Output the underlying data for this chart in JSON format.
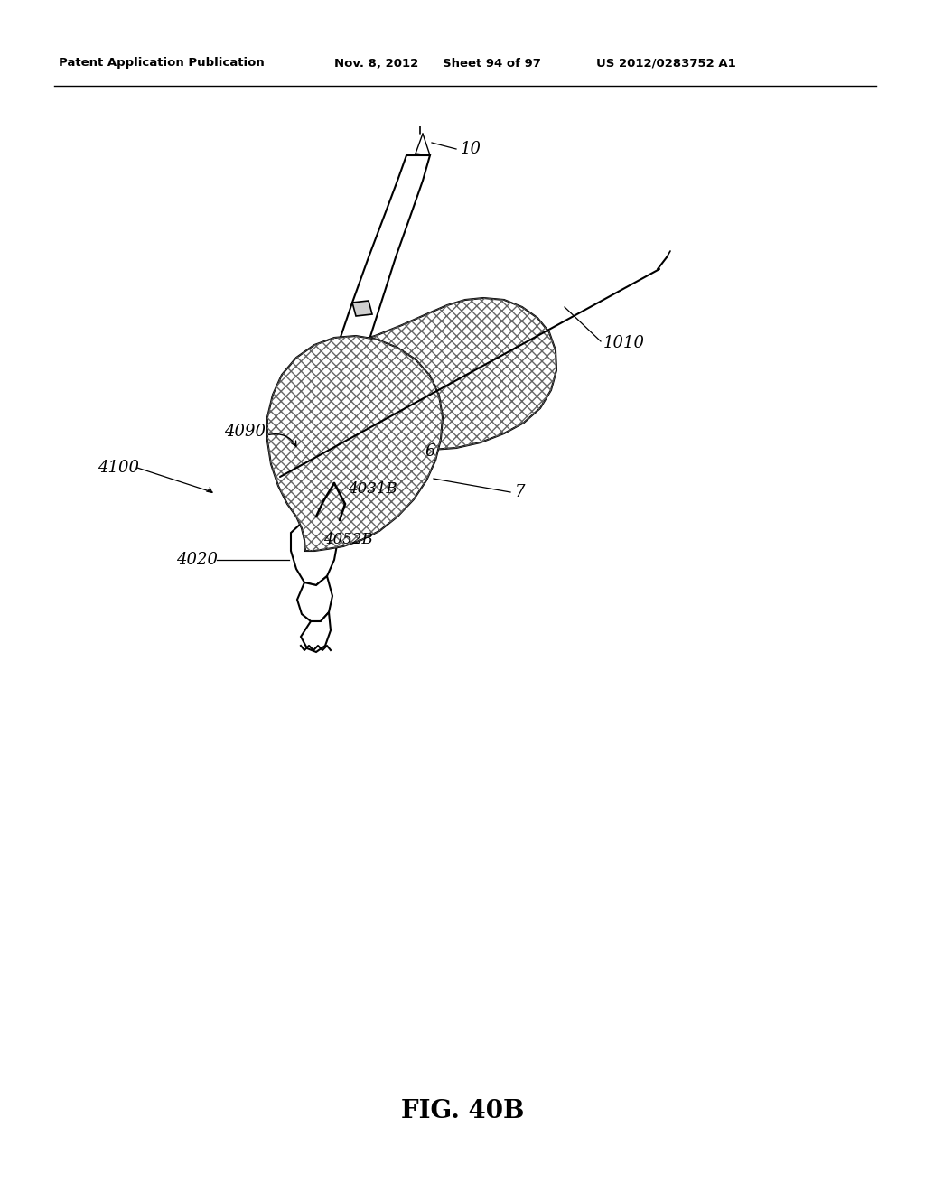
{
  "bg_color": "#ffffff",
  "header_text": "Patent Application Publication",
  "header_date": "Nov. 8, 2012",
  "header_sheet": "Sheet 94 of 97",
  "header_patent": "US 2012/0283752 A1",
  "figure_label": "FIG. 40B"
}
